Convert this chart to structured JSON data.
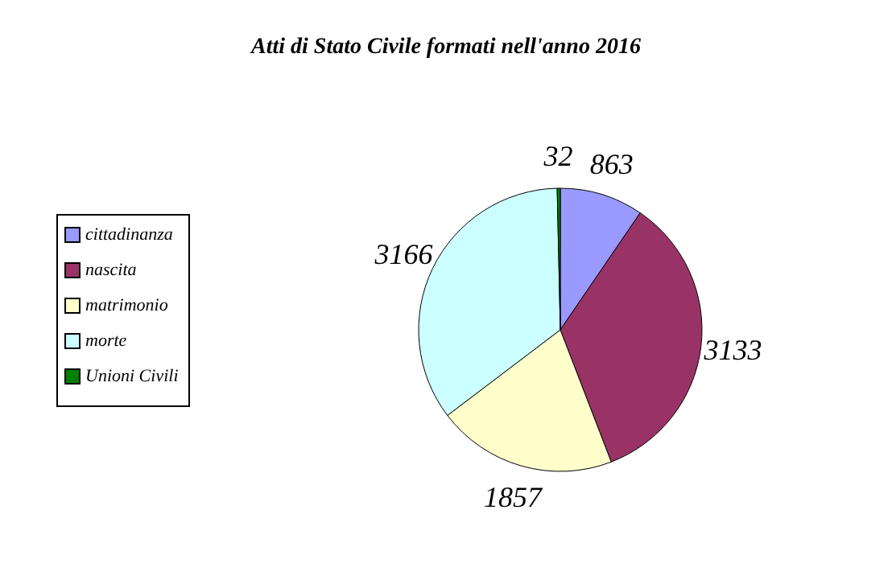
{
  "chart_data": {
    "type": "pie",
    "title": "Atti di Stato Civile formati nell'anno 2016",
    "categories": [
      "cittadinanza",
      "nascita",
      "matrimonio",
      "morte",
      "Unioni Civili"
    ],
    "values": [
      863,
      3133,
      1857,
      3166,
      32
    ],
    "colors": [
      "#9999ff",
      "#993366",
      "#ffffcc",
      "#ccffff",
      "#008000"
    ],
    "data_labels": true,
    "legend": "left"
  }
}
